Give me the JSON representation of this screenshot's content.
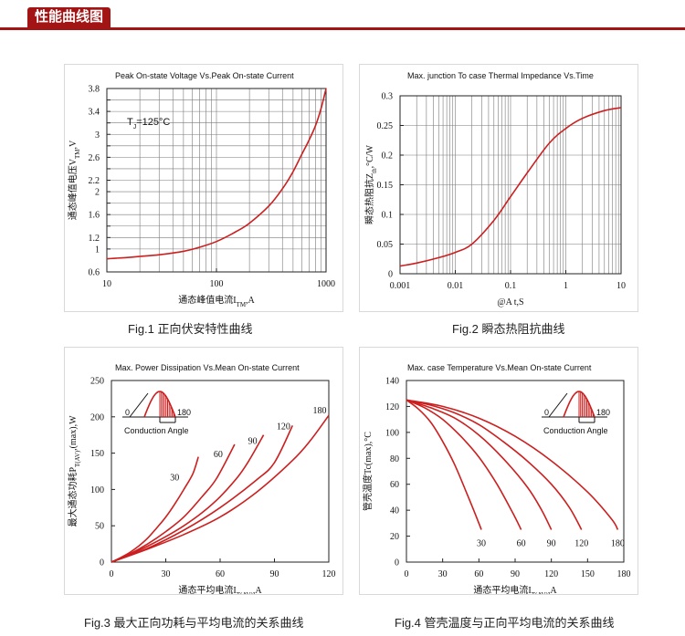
{
  "header": {
    "title": "性能曲线图"
  },
  "captions": {
    "fig1": "Fig.1  正向伏安特性曲线",
    "fig2": "Fig.2  瞬态热阻抗曲线",
    "fig3": "Fig.3  最大正向功耗与平均电流的关系曲线",
    "fig4": "Fig.4  管壳温度与正向平均电流的关系曲线"
  },
  "colors": {
    "curve": "#cc1f1f",
    "grid": "#7a7a7a",
    "accent": "#a31515"
  },
  "chart_data": [
    {
      "type": "line",
      "title": "Peak On-state Voltage Vs.Peak On-state Current",
      "xlabel": "通态峰值电流I_TM,A",
      "ylabel": "通态峰值电压V_TM,V",
      "xscale": "log",
      "xlim": [
        10,
        1000
      ],
      "ylim": [
        0.6,
        3.8
      ],
      "xticks": [
        "10",
        "100",
        "1000"
      ],
      "yticks": [
        "0.6",
        "1",
        "1.2",
        "1.4",
        "1.6",
        "1.8",
        "2",
        "2.2",
        "2.4",
        "2.6",
        "2.8",
        "3",
        "3.2",
        "3.4",
        "3.6",
        "3.8"
      ],
      "yticks_labeled": [
        "0.6",
        "1",
        "1.2",
        "1.6",
        "2",
        "2.2",
        "2.6",
        "3",
        "3.4",
        "3.8"
      ],
      "annotation": "T_J=125°C",
      "grid": true,
      "series": [
        {
          "x": [
            10,
            15,
            20,
            30,
            50,
            70,
            100,
            150,
            200,
            300,
            400,
            500,
            600,
            700,
            800,
            900,
            1000
          ],
          "y": [
            0.83,
            0.85,
            0.87,
            0.9,
            0.96,
            1.03,
            1.13,
            1.3,
            1.45,
            1.75,
            2.05,
            2.35,
            2.65,
            2.9,
            3.15,
            3.45,
            3.8
          ]
        }
      ]
    },
    {
      "type": "line",
      "title": "Max. junction To case Thermal Impedance Vs.Time",
      "xlabel": "@A   t,S",
      "ylabel": "瞬态热阻抗Z_th,°C/W",
      "xscale": "log",
      "xlim": [
        0.001,
        10
      ],
      "ylim": [
        0,
        0.3
      ],
      "xticks": [
        "0.001",
        "0.01",
        "0.1",
        "1",
        "10"
      ],
      "yticks": [
        "0",
        "0.05",
        "0.1",
        "0.15",
        "0.2",
        "0.25",
        "0.3"
      ],
      "grid": true,
      "series": [
        {
          "x": [
            0.001,
            0.002,
            0.005,
            0.01,
            0.02,
            0.05,
            0.1,
            0.2,
            0.5,
            1,
            2,
            5,
            10
          ],
          "y": [
            0.013,
            0.018,
            0.027,
            0.036,
            0.05,
            0.09,
            0.13,
            0.17,
            0.22,
            0.245,
            0.262,
            0.275,
            0.28
          ]
        }
      ]
    },
    {
      "type": "line",
      "title": "Max. Power Dissipation Vs.Mean On-state Current",
      "xlabel": "通态平均电流I_T(AV),A",
      "ylabel": "最大通态功耗P_T(AV),(max),W",
      "xlim": [
        0,
        120
      ],
      "ylim": [
        0,
        250
      ],
      "xticks": [
        "0",
        "30",
        "60",
        "90",
        "120"
      ],
      "yticks": [
        "0",
        "50",
        "100",
        "150",
        "200",
        "250"
      ],
      "inset": {
        "left": "0",
        "right": "180",
        "caption": "Conduction Angle"
      },
      "grid": false,
      "series": [
        {
          "name": "30",
          "x": [
            0,
            5,
            10,
            15,
            20,
            25,
            30,
            35,
            40,
            45,
            48
          ],
          "y": [
            0,
            6,
            13,
            22,
            33,
            47,
            62,
            80,
            100,
            122,
            145
          ]
        },
        {
          "name": "60",
          "x": [
            0,
            10,
            20,
            30,
            40,
            50,
            58,
            68
          ],
          "y": [
            0,
            11,
            25,
            42,
            62,
            90,
            115,
            162
          ]
        },
        {
          "name": "90",
          "x": [
            0,
            10,
            20,
            30,
            40,
            50,
            60,
            70,
            76,
            84
          ],
          "y": [
            0,
            10,
            22,
            35,
            50,
            68,
            90,
            118,
            140,
            175
          ]
        },
        {
          "name": "120",
          "x": [
            0,
            20,
            40,
            60,
            80,
            90,
            100
          ],
          "y": [
            0,
            19,
            44,
            75,
            113,
            137,
            188
          ]
        },
        {
          "name": "180",
          "x": [
            0,
            20,
            40,
            60,
            80,
            100,
            110,
            120
          ],
          "y": [
            0,
            18,
            38,
            62,
            96,
            140,
            168,
            202
          ]
        }
      ]
    },
    {
      "type": "line",
      "title": "Max. case Temperature Vs.Mean On-state Current",
      "xlabel": "通态平均电流I_T(AV),A",
      "ylabel": "管壳温度Tc(max),°C",
      "xlim": [
        0,
        180
      ],
      "ylim": [
        0,
        140
      ],
      "xticks": [
        "0",
        "30",
        "60",
        "90",
        "120",
        "150",
        "180"
      ],
      "yticks": [
        "0",
        "20",
        "40",
        "60",
        "80",
        "100",
        "120",
        "140"
      ],
      "inset": {
        "left": "0",
        "right": "180",
        "caption": "Conduction Angle"
      },
      "grid": false,
      "series": [
        {
          "name": "30",
          "x": [
            0,
            10,
            20,
            30,
            40,
            50,
            60,
            62
          ],
          "y": [
            125,
            118,
            108,
            93,
            75,
            53,
            30,
            25
          ]
        },
        {
          "name": "60",
          "x": [
            0,
            15,
            30,
            45,
            60,
            75,
            88,
            95
          ],
          "y": [
            125,
            119,
            110,
            97,
            81,
            60,
            38,
            25
          ]
        },
        {
          "name": "90",
          "x": [
            0,
            20,
            40,
            60,
            80,
            100,
            112,
            120
          ],
          "y": [
            125,
            119,
            111,
            98,
            80,
            58,
            40,
            25
          ]
        },
        {
          "name": "120",
          "x": [
            0,
            20,
            40,
            60,
            80,
            100,
            120,
            135,
            145
          ],
          "y": [
            125,
            121,
            115,
            106,
            93,
            78,
            60,
            42,
            25
          ]
        },
        {
          "name": "180",
          "x": [
            0,
            30,
            60,
            90,
            120,
            150,
            170,
            175
          ],
          "y": [
            125,
            120,
            111,
            97,
            78,
            54,
            33,
            25
          ]
        }
      ]
    }
  ]
}
